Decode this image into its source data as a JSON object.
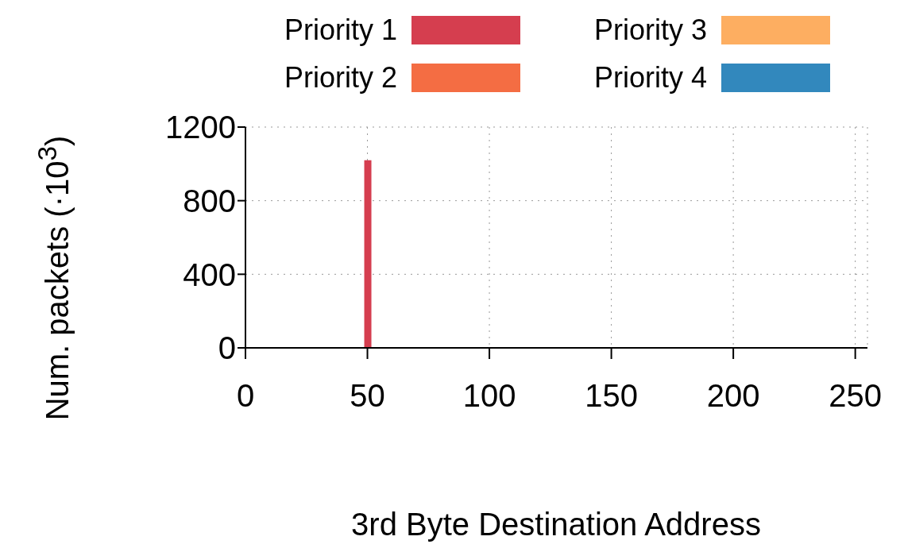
{
  "chart_data": {
    "type": "bar",
    "xlabel": "3rd Byte Destination Address",
    "ylabel": "Num. packets (·10$^{3}$)",
    "x": [
      50
    ],
    "series": [
      {
        "name": "Priority 1",
        "color": "#d53e4f",
        "values": [
          1020
        ]
      },
      {
        "name": "Priority 2",
        "color": "#f46d43",
        "values": [
          null
        ]
      },
      {
        "name": "Priority 3",
        "color": "#fdae61",
        "values": [
          null
        ]
      },
      {
        "name": "Priority 4",
        "color": "#3288bd",
        "values": [
          null
        ]
      }
    ],
    "xlim": [
      0,
      255
    ],
    "xticks": [
      0,
      50,
      100,
      150,
      200,
      250
    ],
    "ylim": [
      0,
      1200
    ],
    "yticks": [
      0,
      400,
      800,
      1200
    ],
    "grid": true,
    "legend": "top"
  }
}
